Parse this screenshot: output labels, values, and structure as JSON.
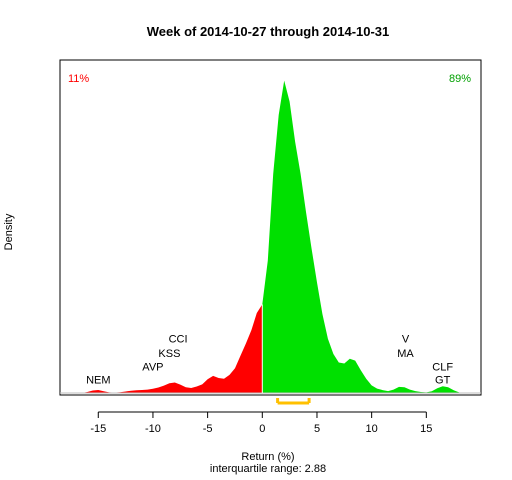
{
  "chart_data": {
    "type": "area",
    "title": "Week of 2014-10-27 through 2014-10-31",
    "xlabel": "Return (%)",
    "subxlabel": "interquartile range: 2.88",
    "ylabel": "Density",
    "xlim": [
      -18.5,
      20
    ],
    "ylim": [
      0,
      0.168
    ],
    "xticks": [
      -15,
      -10,
      -5,
      0,
      5,
      10,
      15
    ],
    "split_at": 0,
    "negative_share": "11%",
    "positive_share": "89%",
    "colors": {
      "negative": "#ff0000",
      "positive": "#00e000",
      "iqr": "#ffc000",
      "baseline": "#bebebe"
    },
    "iqr": [
      1.4,
      4.28
    ],
    "curve": {
      "x": [
        -16.5,
        -16.0,
        -15.5,
        -15.0,
        -14.5,
        -14.0,
        -13.5,
        -13.0,
        -12.5,
        -12.0,
        -11.5,
        -11.0,
        -10.5,
        -10.0,
        -9.5,
        -9.0,
        -8.5,
        -8.0,
        -7.5,
        -7.0,
        -6.5,
        -6.0,
        -5.5,
        -5.0,
        -4.5,
        -4.0,
        -3.5,
        -3.0,
        -2.5,
        -2.0,
        -1.5,
        -1.0,
        -0.5,
        0.0,
        0.5,
        1.0,
        1.5,
        2.0,
        2.5,
        3.0,
        3.5,
        4.0,
        4.5,
        5.0,
        5.5,
        6.0,
        6.5,
        7.0,
        7.5,
        8.0,
        8.5,
        9.0,
        9.5,
        10.0,
        10.5,
        11.0,
        11.5,
        12.0,
        12.5,
        13.0,
        13.5,
        14.0,
        14.5,
        15.0,
        15.5,
        16.0,
        16.5,
        17.0,
        17.5,
        18.0
      ],
      "y": [
        0.0,
        0.0005,
        0.0013,
        0.0016,
        0.0009,
        0.0003,
        0.0002,
        0.0004,
        0.0008,
        0.0012,
        0.0014,
        0.0016,
        0.0018,
        0.0022,
        0.0029,
        0.0039,
        0.0051,
        0.0055,
        0.0044,
        0.003,
        0.0026,
        0.0034,
        0.0045,
        0.0072,
        0.009,
        0.0079,
        0.0075,
        0.0095,
        0.013,
        0.0195,
        0.026,
        0.033,
        0.042,
        0.0465,
        0.0695,
        0.115,
        0.146,
        0.164,
        0.153,
        0.132,
        0.115,
        0.095,
        0.076,
        0.058,
        0.0415,
        0.0285,
        0.0205,
        0.016,
        0.0155,
        0.018,
        0.017,
        0.012,
        0.0075,
        0.004,
        0.0023,
        0.0015,
        0.001,
        0.0018,
        0.0032,
        0.003,
        0.0018,
        0.001,
        0.0005,
        0.0003,
        0.0009,
        0.0025,
        0.0035,
        0.003,
        0.0014,
        0.0003
      ]
    },
    "annotations": [
      {
        "label": "NEM",
        "x": -15.0,
        "y": 0.007
      },
      {
        "label": "AVP",
        "x": -10.0,
        "y": 0.014
      },
      {
        "label": "KSS",
        "x": -8.5,
        "y": 0.021
      },
      {
        "label": "CCI",
        "x": -7.7,
        "y": 0.0285
      },
      {
        "label": "V",
        "x": 13.1,
        "y": 0.0285
      },
      {
        "label": "MA",
        "x": 13.1,
        "y": 0.021
      },
      {
        "label": "CLF",
        "x": 16.5,
        "y": 0.014
      },
      {
        "label": "GT",
        "x": 16.5,
        "y": 0.007
      }
    ]
  }
}
